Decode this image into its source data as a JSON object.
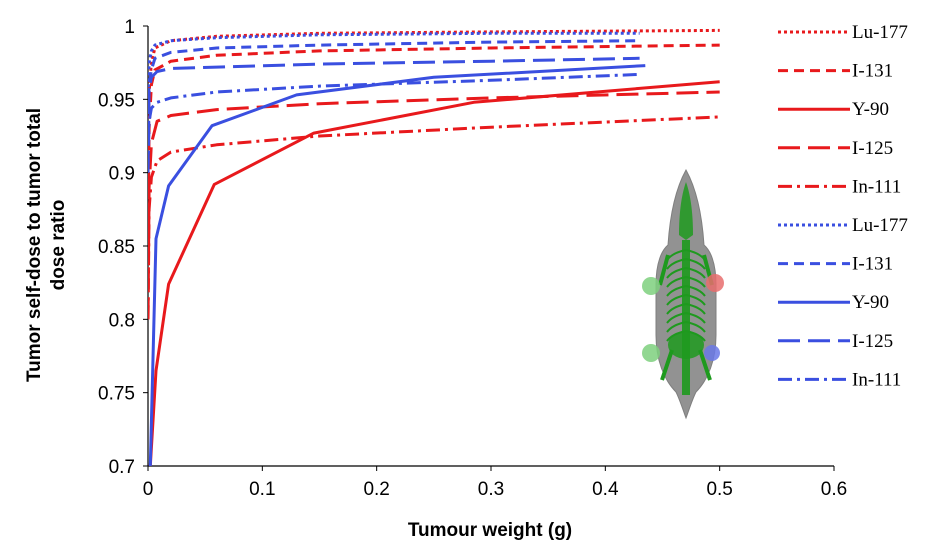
{
  "chart_data": {
    "type": "line",
    "title": "",
    "xlabel": "Tumour weight (g)",
    "ylabel_lines": [
      "Tumor self-dose to tumor total",
      "dose ratio"
    ],
    "xlim": [
      0,
      0.6
    ],
    "ylim": [
      0.7,
      1.0
    ],
    "x_ticks": [
      "0",
      "0.1",
      "0.2",
      "0.3",
      "0.4",
      "0.5",
      "0.6"
    ],
    "y_ticks": [
      "0.7",
      "0.75",
      "0.8",
      "0.85",
      "0.9",
      "0.95",
      "1"
    ],
    "grid": false,
    "legend_position": "right",
    "series": [
      {
        "name": "Lu-177",
        "color": "#e8191c",
        "dash": "dot",
        "x": [
          0,
          0.001,
          0.003,
          0.006,
          0.02,
          0.06,
          0.15,
          0.3,
          0.5
        ],
        "y": [
          0.9,
          0.955,
          0.975,
          0.985,
          0.99,
          0.993,
          0.995,
          0.996,
          0.997
        ]
      },
      {
        "name": "I-131",
        "color": "#e8191c",
        "dash": "dash",
        "x": [
          0,
          0.001,
          0.003,
          0.006,
          0.02,
          0.06,
          0.15,
          0.3,
          0.5
        ],
        "y": [
          0.85,
          0.93,
          0.96,
          0.97,
          0.976,
          0.98,
          0.983,
          0.985,
          0.987
        ]
      },
      {
        "name": "Y-90",
        "color": "#e8191c",
        "dash": "solid",
        "x": [
          0.002,
          0.007,
          0.018,
          0.058,
          0.145,
          0.285,
          0.5
        ],
        "y": [
          0.7,
          0.765,
          0.824,
          0.892,
          0.927,
          0.948,
          0.962
        ]
      },
      {
        "name": "I-125",
        "color": "#e8191c",
        "dash": "longdash",
        "x": [
          0,
          0.001,
          0.003,
          0.008,
          0.02,
          0.06,
          0.15,
          0.3,
          0.5
        ],
        "y": [
          0.8,
          0.89,
          0.92,
          0.935,
          0.939,
          0.943,
          0.947,
          0.951,
          0.955
        ]
      },
      {
        "name": "In-111",
        "color": "#e8191c",
        "dash": "dashdot",
        "x": [
          0,
          0.001,
          0.003,
          0.008,
          0.02,
          0.06,
          0.15,
          0.3,
          0.5
        ],
        "y": [
          0.8,
          0.875,
          0.897,
          0.908,
          0.914,
          0.919,
          0.925,
          0.931,
          0.938
        ]
      },
      {
        "name": "Lu-177",
        "color": "#3a4fe0",
        "dash": "dot",
        "x": [
          0,
          0.001,
          0.003,
          0.006,
          0.02,
          0.06,
          0.15,
          0.3,
          0.43
        ],
        "y": [
          0.95,
          0.975,
          0.983,
          0.987,
          0.99,
          0.992,
          0.994,
          0.995,
          0.995
        ]
      },
      {
        "name": "I-131",
        "color": "#3a4fe0",
        "dash": "dash",
        "x": [
          0,
          0.001,
          0.003,
          0.006,
          0.02,
          0.06,
          0.15,
          0.3,
          0.43
        ],
        "y": [
          0.94,
          0.96,
          0.97,
          0.978,
          0.982,
          0.985,
          0.987,
          0.989,
          0.99
        ]
      },
      {
        "name": "Y-90",
        "color": "#3a4fe0",
        "dash": "solid",
        "x": [
          0.002,
          0.007,
          0.018,
          0.056,
          0.13,
          0.25,
          0.435
        ],
        "y": [
          0.7,
          0.855,
          0.891,
          0.932,
          0.953,
          0.965,
          0.973
        ]
      },
      {
        "name": "I-125",
        "color": "#3a4fe0",
        "dash": "longdash",
        "x": [
          0,
          0.001,
          0.003,
          0.008,
          0.02,
          0.06,
          0.15,
          0.3,
          0.43
        ],
        "y": [
          0.9,
          0.955,
          0.965,
          0.969,
          0.971,
          0.972,
          0.974,
          0.976,
          0.978
        ]
      },
      {
        "name": "In-111",
        "color": "#3a4fe0",
        "dash": "dashdot",
        "x": [
          0,
          0.001,
          0.003,
          0.008,
          0.02,
          0.06,
          0.15,
          0.3,
          0.43
        ],
        "y": [
          0.9,
          0.935,
          0.944,
          0.948,
          0.951,
          0.955,
          0.959,
          0.963,
          0.967
        ]
      }
    ]
  },
  "inset": {
    "icon": "mouse-skeleton-phantom-icon",
    "body_color": "#6e6e6e",
    "skeleton_color": "#1e9a1e",
    "tumor_colors": [
      "#7ed07e",
      "#e86d6d",
      "#7ed07e",
      "#6a78e6"
    ]
  }
}
